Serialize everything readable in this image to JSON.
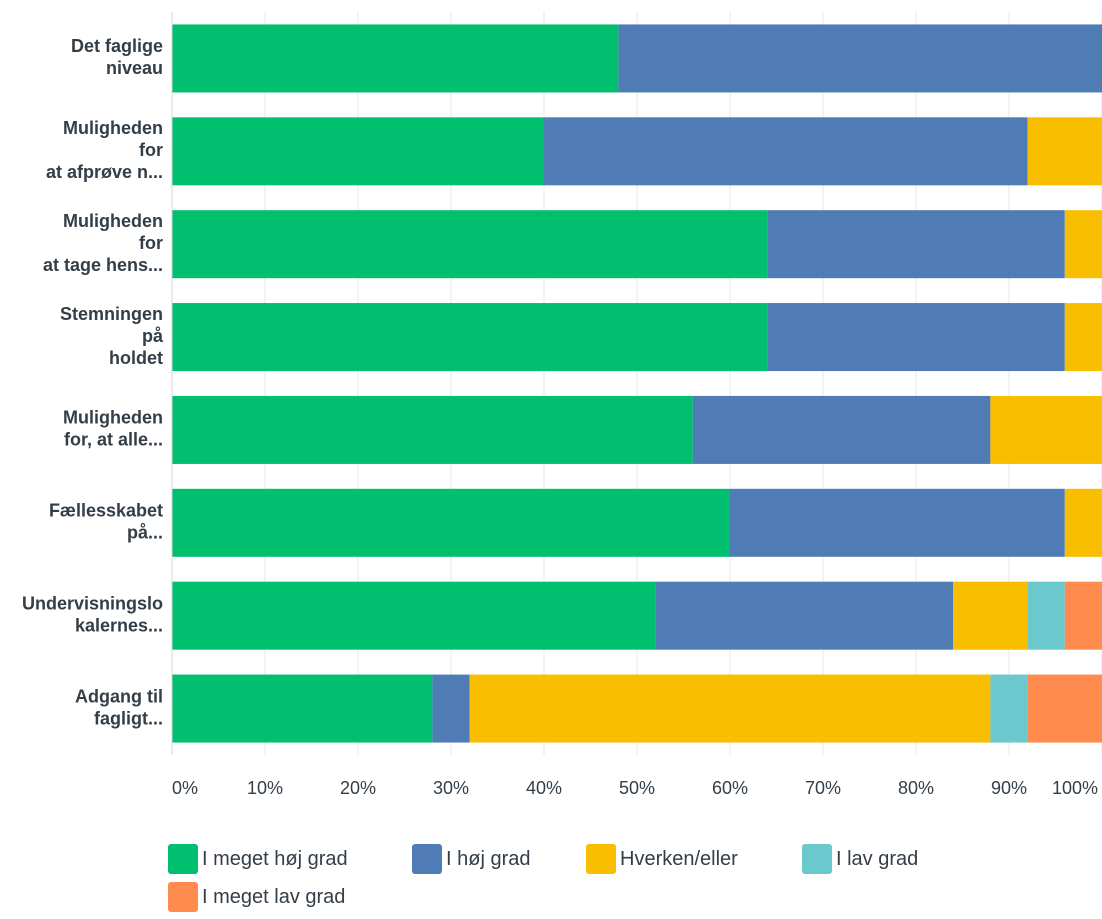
{
  "chart_data": {
    "type": "bar",
    "orientation": "horizontal",
    "stacked": true,
    "percent": true,
    "categories": [
      [
        "Det faglige",
        "niveau"
      ],
      [
        "Muligheden",
        "for",
        "at afprøve n..."
      ],
      [
        "Muligheden",
        "for",
        "at tage hens..."
      ],
      [
        "Stemningen",
        "på",
        "holdet"
      ],
      [
        "Muligheden",
        "for, at alle..."
      ],
      [
        "Fællesskabet",
        "på..."
      ],
      [
        "Undervisningslo",
        "kalernes..."
      ],
      [
        "Adgang til",
        "fagligt..."
      ]
    ],
    "series": [
      {
        "name": "I meget høj grad",
        "color": "#00bf6f",
        "values": [
          48,
          40,
          64,
          64,
          56,
          60,
          52,
          28
        ]
      },
      {
        "name": "I høj grad",
        "color": "#507cb6",
        "values": [
          52,
          52,
          32,
          32,
          32,
          36,
          32,
          4
        ]
      },
      {
        "name": "Hverken/eller",
        "color": "#f9be00",
        "values": [
          0,
          8,
          4,
          4,
          12,
          4,
          8,
          56
        ]
      },
      {
        "name": "I lav grad",
        "color": "#6bc8cd",
        "values": [
          0,
          0,
          0,
          0,
          0,
          0,
          4,
          4
        ]
      },
      {
        "name": "I meget lav grad",
        "color": "#ff8b4f",
        "values": [
          0,
          0,
          0,
          0,
          0,
          0,
          4,
          8
        ]
      }
    ],
    "xticks": [
      "0%",
      "10%",
      "20%",
      "30%",
      "40%",
      "50%",
      "60%",
      "70%",
      "80%",
      "90%",
      "100%"
    ],
    "xlim": [
      0,
      100
    ],
    "grid": true,
    "legend_position": "bottom"
  }
}
